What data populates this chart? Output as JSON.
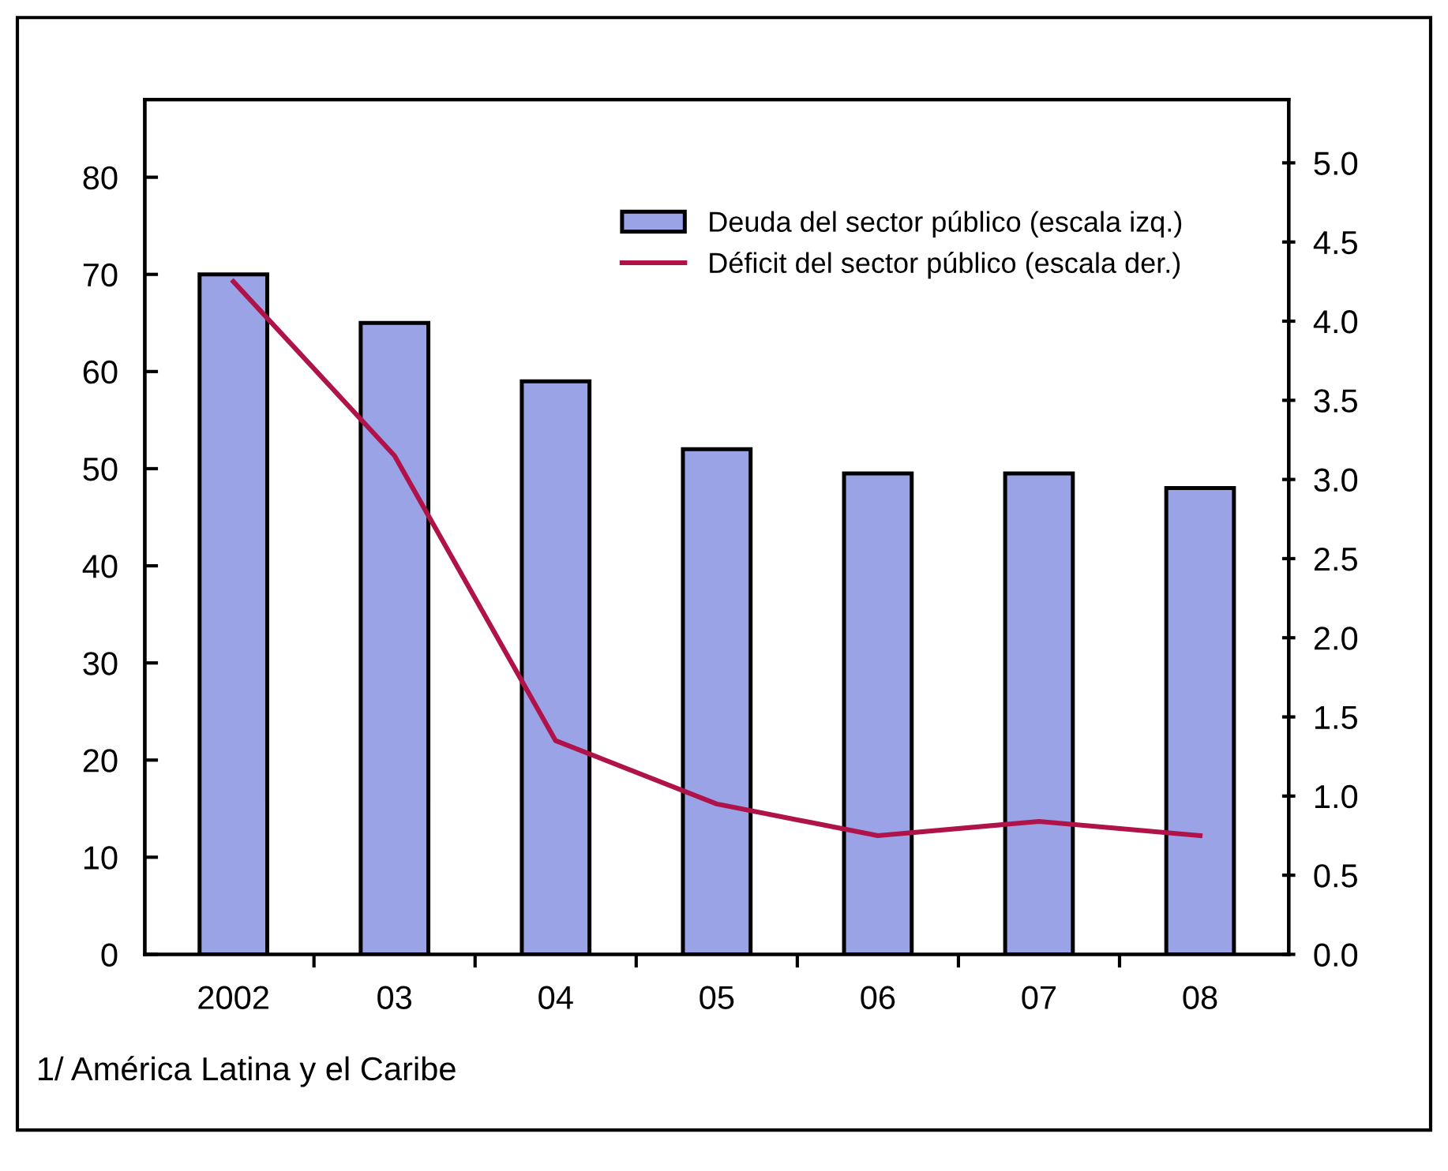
{
  "chart_data": {
    "type": "bar",
    "categories": [
      "2002",
      "03",
      "04",
      "05",
      "06",
      "07",
      "08"
    ],
    "series": [
      {
        "name": "Deuda del sector público (escala izq.)",
        "color": "#9aa3e6",
        "values": [
          70,
          65,
          59,
          52,
          49.5,
          49.5,
          48
        ]
      },
      {
        "name": "Déficit del sector público (escala der.)",
        "type": "line",
        "axis": "y2",
        "color": "#b0124a",
        "values": [
          4.25,
          3.15,
          1.35,
          0.95,
          0.75,
          0.84,
          0.75
        ]
      }
    ],
    "ylim": [
      0,
      88
    ],
    "yticks": [
      0,
      10,
      20,
      30,
      40,
      50,
      60,
      70,
      80
    ],
    "y2lim": [
      0,
      5.4
    ],
    "y2ticks": [
      {
        "value": 0,
        "label": "0.0"
      },
      0.5,
      {
        "value": 1,
        "label": "1.0"
      },
      1.5,
      {
        "value": 2,
        "label": "2.0"
      },
      2.5,
      {
        "value": 3,
        "label": "3.0"
      },
      3.5,
      {
        "value": 4,
        "label": "4.0"
      },
      4.5,
      {
        "value": 5,
        "label": "5.0"
      }
    ],
    "legend": "top right",
    "grid": false,
    "marker": "none",
    "line_style": "solid",
    "annotations": [
      "1/ América Latina y el Caribe"
    ]
  }
}
